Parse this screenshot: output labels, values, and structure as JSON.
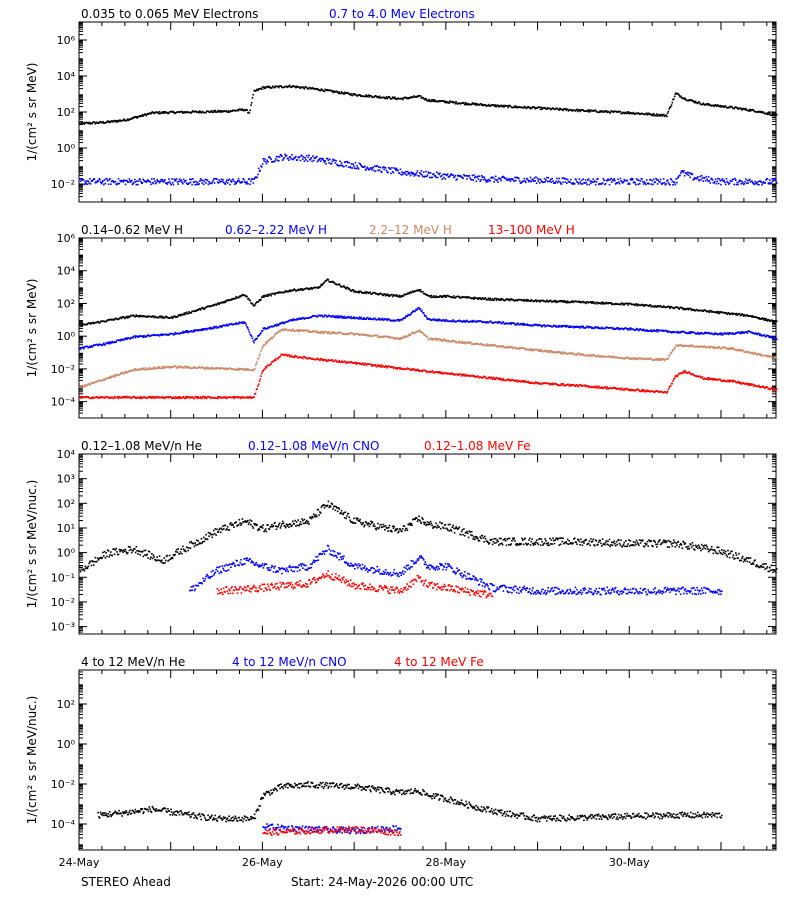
{
  "footer": {
    "left": "STEREO Ahead",
    "center": "Start: 24-May-2026 00:00 UTC"
  },
  "colors": {
    "black": "#000000",
    "blue": "#0000ff",
    "tan": "#cc8866",
    "red": "#ff0000"
  },
  "chart_data": [
    {
      "type": "scatter",
      "log_y": true,
      "ylabel": "1/(cm² s sr MeV)",
      "ylim": [
        0.001,
        10000000
      ],
      "yticks": [
        {
          "v": 0.01,
          "label": "10⁻²"
        },
        {
          "v": 1,
          "label": "10⁰"
        },
        {
          "v": 100,
          "label": "10²"
        },
        {
          "v": 10000,
          "label": "10⁴"
        },
        {
          "v": 1000000,
          "label": "10⁶"
        }
      ],
      "xlim": [
        0,
        7.6
      ],
      "xticks": [
        {
          "v": 0,
          "label": "24-May"
        },
        {
          "v": 2,
          "label": "26-May"
        },
        {
          "v": 4,
          "label": "28-May"
        },
        {
          "v": 6,
          "label": "30-May"
        }
      ],
      "series": [
        {
          "name": "0.035 to 0.065 MeV Electrons",
          "color": "black",
          "x": [
            0,
            0.3,
            0.5,
            0.8,
            1.2,
            1.6,
            1.8,
            1.85,
            1.9,
            2.0,
            2.3,
            2.6,
            3.0,
            3.5,
            3.7,
            3.8,
            4.0,
            4.5,
            5.0,
            5.5,
            6.0,
            6.4,
            6.5,
            6.6,
            6.8,
            7.1,
            7.4,
            7.6
          ],
          "y": [
            25,
            30,
            40,
            100,
            110,
            120,
            150,
            100,
            1500,
            2500,
            3000,
            2000,
            1000,
            600,
            800,
            500,
            400,
            250,
            180,
            130,
            100,
            70,
            1200,
            600,
            300,
            200,
            120,
            70
          ]
        },
        {
          "name": "0.7 to 4.0 Mev Electrons",
          "color": "blue",
          "x": [
            0,
            0.5,
            1.0,
            1.5,
            1.9,
            2.0,
            2.2,
            2.5,
            3.0,
            3.5,
            4.0,
            4.5,
            5.0,
            5.5,
            6.0,
            6.5,
            6.55,
            6.7,
            7.0,
            7.6
          ],
          "y": [
            0.015,
            0.015,
            0.015,
            0.015,
            0.015,
            0.2,
            0.35,
            0.3,
            0.12,
            0.05,
            0.03,
            0.02,
            0.018,
            0.015,
            0.015,
            0.015,
            0.05,
            0.025,
            0.015,
            0.015
          ]
        }
      ]
    },
    {
      "type": "scatter",
      "log_y": true,
      "ylabel": "1/(cm² s sr MeV)",
      "ylim": [
        1e-05,
        1000000
      ],
      "yticks": [
        {
          "v": 0.0001,
          "label": "10⁻⁴"
        },
        {
          "v": 0.01,
          "label": "10⁻²"
        },
        {
          "v": 1,
          "label": "10⁰"
        },
        {
          "v": 100,
          "label": "10²"
        },
        {
          "v": 10000,
          "label": "10⁴"
        },
        {
          "v": 1000000,
          "label": "10⁶"
        }
      ],
      "xlim": [
        0,
        7.6
      ],
      "series": [
        {
          "name": "0.14–0.62 MeV H",
          "color": "black",
          "x": [
            0,
            0.3,
            0.6,
            1.0,
            1.5,
            1.8,
            1.9,
            2.0,
            2.3,
            2.6,
            2.7,
            3.0,
            3.5,
            3.7,
            3.8,
            4.0,
            4.5,
            5.0,
            5.5,
            6.0,
            6.5,
            7.0,
            7.3,
            7.6
          ],
          "y": [
            5,
            10,
            20,
            15,
            100,
            400,
            80,
            300,
            700,
            1000,
            3000,
            600,
            300,
            800,
            300,
            300,
            200,
            160,
            130,
            100,
            60,
            30,
            20,
            8
          ]
        },
        {
          "name": "0.62–2.22 MeV H",
          "color": "blue",
          "x": [
            0,
            0.3,
            0.6,
            1.0,
            1.5,
            1.8,
            1.9,
            2.0,
            2.3,
            2.6,
            3.0,
            3.5,
            3.7,
            3.8,
            4.0,
            4.5,
            5.0,
            5.5,
            6.0,
            6.5,
            7.0,
            7.3,
            7.6
          ],
          "y": [
            0.2,
            0.4,
            1,
            1.5,
            4,
            8,
            0.5,
            3,
            10,
            20,
            15,
            10,
            60,
            12,
            10,
            8,
            5,
            4,
            3,
            2,
            1.5,
            2,
            0.8
          ]
        },
        {
          "name": "2.2–12 MeV H",
          "color": "tan",
          "x": [
            0,
            0.3,
            0.6,
            1.0,
            1.5,
            1.9,
            2.0,
            2.2,
            2.6,
            3.0,
            3.5,
            3.7,
            3.8,
            4.0,
            4.5,
            5.0,
            5.5,
            6.0,
            6.4,
            6.5,
            6.6,
            6.8,
            7.1,
            7.6
          ],
          "y": [
            0.0008,
            0.003,
            0.01,
            0.015,
            0.012,
            0.01,
            0.3,
            3,
            2,
            1.5,
            0.8,
            2.5,
            0.8,
            0.6,
            0.3,
            0.15,
            0.08,
            0.05,
            0.04,
            0.3,
            0.3,
            0.25,
            0.2,
            0.05
          ]
        },
        {
          "name": "13–100 MeV H",
          "color": "red",
          "x": [
            0,
            0.5,
            1.0,
            1.5,
            1.9,
            2.0,
            2.2,
            2.5,
            3.0,
            3.5,
            4.0,
            4.5,
            5.0,
            5.5,
            6.0,
            6.4,
            6.5,
            6.6,
            6.8,
            7.1,
            7.6
          ],
          "y": [
            0.0002,
            0.0002,
            0.0002,
            0.0002,
            0.0002,
            0.01,
            0.08,
            0.05,
            0.025,
            0.012,
            0.006,
            0.003,
            0.0015,
            0.001,
            0.0006,
            0.0004,
            0.004,
            0.008,
            0.003,
            0.002,
            0.0006
          ]
        }
      ]
    },
    {
      "type": "scatter",
      "log_y": true,
      "ylabel": "1/(cm² s sr MeV/nuc.)",
      "ylim": [
        0.0005,
        10000
      ],
      "yticks": [
        {
          "v": 0.001,
          "label": "10⁻³"
        },
        {
          "v": 0.01,
          "label": "10⁻²"
        },
        {
          "v": 0.1,
          "label": "10⁻¹"
        },
        {
          "v": 1,
          "label": "10⁰"
        },
        {
          "v": 10,
          "label": "10¹"
        },
        {
          "v": 100,
          "label": "10²"
        },
        {
          "v": 1000,
          "label": "10³"
        },
        {
          "v": 10000,
          "label": "10⁴"
        }
      ],
      "xlim": [
        0,
        7.6
      ],
      "series": [
        {
          "name": "0.12–1.08 MeV/n He",
          "color": "black",
          "x": [
            0,
            0.3,
            0.6,
            0.9,
            1.2,
            1.5,
            1.8,
            2.0,
            2.2,
            2.5,
            2.7,
            3.0,
            3.5,
            3.7,
            3.8,
            4.0,
            4.5,
            5.0,
            5.5,
            6.0,
            6.5,
            7.0,
            7.3,
            7.6
          ],
          "y": [
            0.2,
            1,
            1.5,
            0.5,
            2,
            8,
            20,
            10,
            15,
            20,
            100,
            20,
            8,
            25,
            15,
            12,
            3,
            3,
            3,
            2.5,
            2.5,
            1.2,
            0.5,
            0.2
          ]
        },
        {
          "name": "0.12–1.08 MeV/n CNO",
          "color": "blue",
          "x": [
            1.2,
            1.5,
            1.8,
            2.0,
            2.2,
            2.5,
            2.7,
            3.0,
            3.5,
            3.7,
            3.8,
            4.0,
            4.5,
            5.0,
            5.5,
            6.0,
            6.5,
            7.0
          ],
          "y": [
            0.03,
            0.2,
            0.5,
            0.3,
            0.2,
            0.3,
            1.5,
            0.3,
            0.15,
            0.7,
            0.3,
            0.3,
            0.04,
            0.03,
            0.03,
            0.03,
            0.03,
            0.03
          ]
        },
        {
          "name": "0.12–1.08 MeV Fe",
          "color": "red",
          "x": [
            1.5,
            2.0,
            2.5,
            2.7,
            3.0,
            3.5,
            3.7,
            3.8,
            4.0,
            4.5
          ],
          "y": [
            0.03,
            0.04,
            0.06,
            0.15,
            0.05,
            0.03,
            0.1,
            0.05,
            0.04,
            0.02
          ]
        }
      ]
    },
    {
      "type": "scatter",
      "log_y": true,
      "ylabel": "1/(cm² s sr MeV/nuc.)",
      "ylim": [
        5e-06,
        5000
      ],
      "yticks": [
        {
          "v": 0.0001,
          "label": "10⁻⁴"
        },
        {
          "v": 0.01,
          "label": "10⁻²"
        },
        {
          "v": 1,
          "label": "10⁰"
        },
        {
          "v": 100,
          "label": "10²"
        }
      ],
      "xlim": [
        0,
        7.6
      ],
      "series": [
        {
          "name": "4 to 12 MeV/n He",
          "color": "black",
          "x": [
            0.2,
            0.5,
            0.8,
            1.2,
            1.5,
            1.9,
            2.0,
            2.2,
            2.5,
            3.0,
            3.5,
            3.7,
            3.8,
            4.0,
            4.3,
            4.6,
            5.0,
            6.5,
            7.0
          ],
          "y": [
            0.0003,
            0.0004,
            0.0006,
            0.0003,
            0.0002,
            0.0002,
            0.003,
            0.008,
            0.01,
            0.008,
            0.004,
            0.005,
            0.003,
            0.002,
            0.0008,
            0.0004,
            0.0002,
            0.0003,
            0.0003
          ]
        },
        {
          "name": "4 to 12 MeV/n CNO",
          "color": "blue",
          "x": [
            2.0,
            2.5,
            3.0,
            3.5
          ],
          "y": [
            8e-05,
            6e-05,
            5e-05,
            7e-05
          ]
        },
        {
          "name": "4 to 12 MeV Fe",
          "color": "red",
          "x": [
            2.0,
            2.5,
            3.0,
            3.5
          ],
          "y": [
            4e-05,
            5e-05,
            6e-05,
            4e-05
          ]
        }
      ]
    }
  ]
}
